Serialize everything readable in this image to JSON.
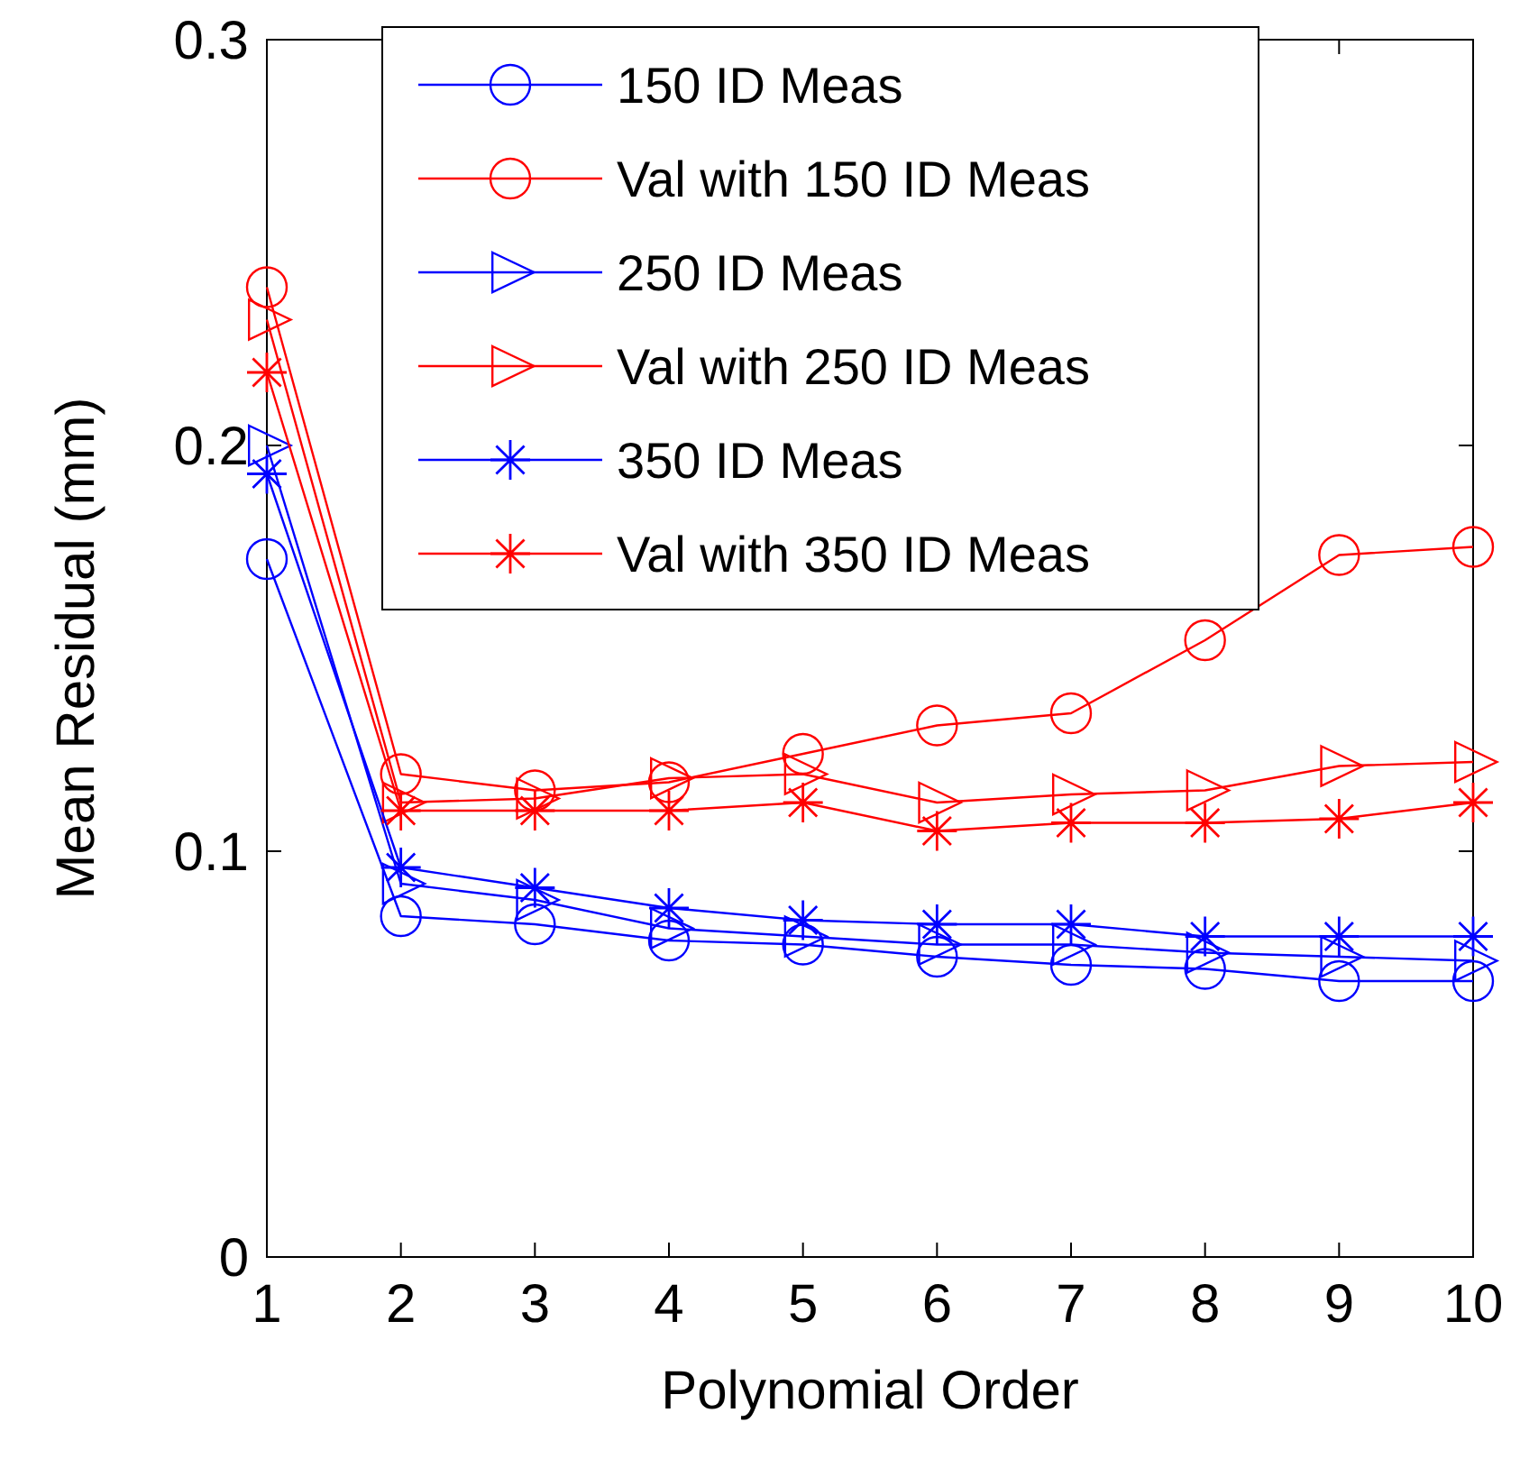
{
  "chart_data": {
    "type": "line",
    "xlabel": "Polynomial Order",
    "ylabel": "Mean Residual (mm)",
    "x": [
      1,
      2,
      3,
      4,
      5,
      6,
      7,
      8,
      9,
      10
    ],
    "xlim": [
      1,
      10
    ],
    "xticks": [
      1,
      2,
      3,
      4,
      5,
      6,
      7,
      8,
      9,
      10
    ],
    "ylim": [
      0,
      0.3
    ],
    "yticks": [
      0,
      0.1,
      0.2,
      0.3
    ],
    "legend": "top",
    "grid": false,
    "series": [
      {
        "name": "150 ID Meas",
        "color": "#0000ff",
        "marker": "circle",
        "values": [
          0.172,
          0.084,
          0.082,
          0.078,
          0.077,
          0.074,
          0.072,
          0.071,
          0.068,
          0.068
        ]
      },
      {
        "name": "Val with 150 ID Meas",
        "color": "#ff0000",
        "marker": "circle",
        "values": [
          0.239,
          0.119,
          0.115,
          0.117,
          0.124,
          0.131,
          0.134,
          0.152,
          0.173,
          0.175
        ]
      },
      {
        "name": "250 ID Meas",
        "color": "#0000ff",
        "marker": "triangle",
        "values": [
          0.2,
          0.092,
          0.088,
          0.081,
          0.079,
          0.077,
          0.077,
          0.075,
          0.074,
          0.073
        ]
      },
      {
        "name": "Val with 250 ID Meas",
        "color": "#ff0000",
        "marker": "triangle",
        "values": [
          0.231,
          0.112,
          0.113,
          0.118,
          0.119,
          0.112,
          0.114,
          0.115,
          0.121,
          0.122
        ]
      },
      {
        "name": "350 ID Meas",
        "color": "#0000ff",
        "marker": "cross",
        "values": [
          0.193,
          0.096,
          0.091,
          0.086,
          0.083,
          0.082,
          0.082,
          0.079,
          0.079,
          0.079
        ]
      },
      {
        "name": "Val with 350 ID Meas",
        "color": "#ff0000",
        "marker": "cross",
        "values": [
          0.218,
          0.11,
          0.11,
          0.11,
          0.112,
          0.105,
          0.107,
          0.107,
          0.108,
          0.112
        ]
      }
    ]
  }
}
